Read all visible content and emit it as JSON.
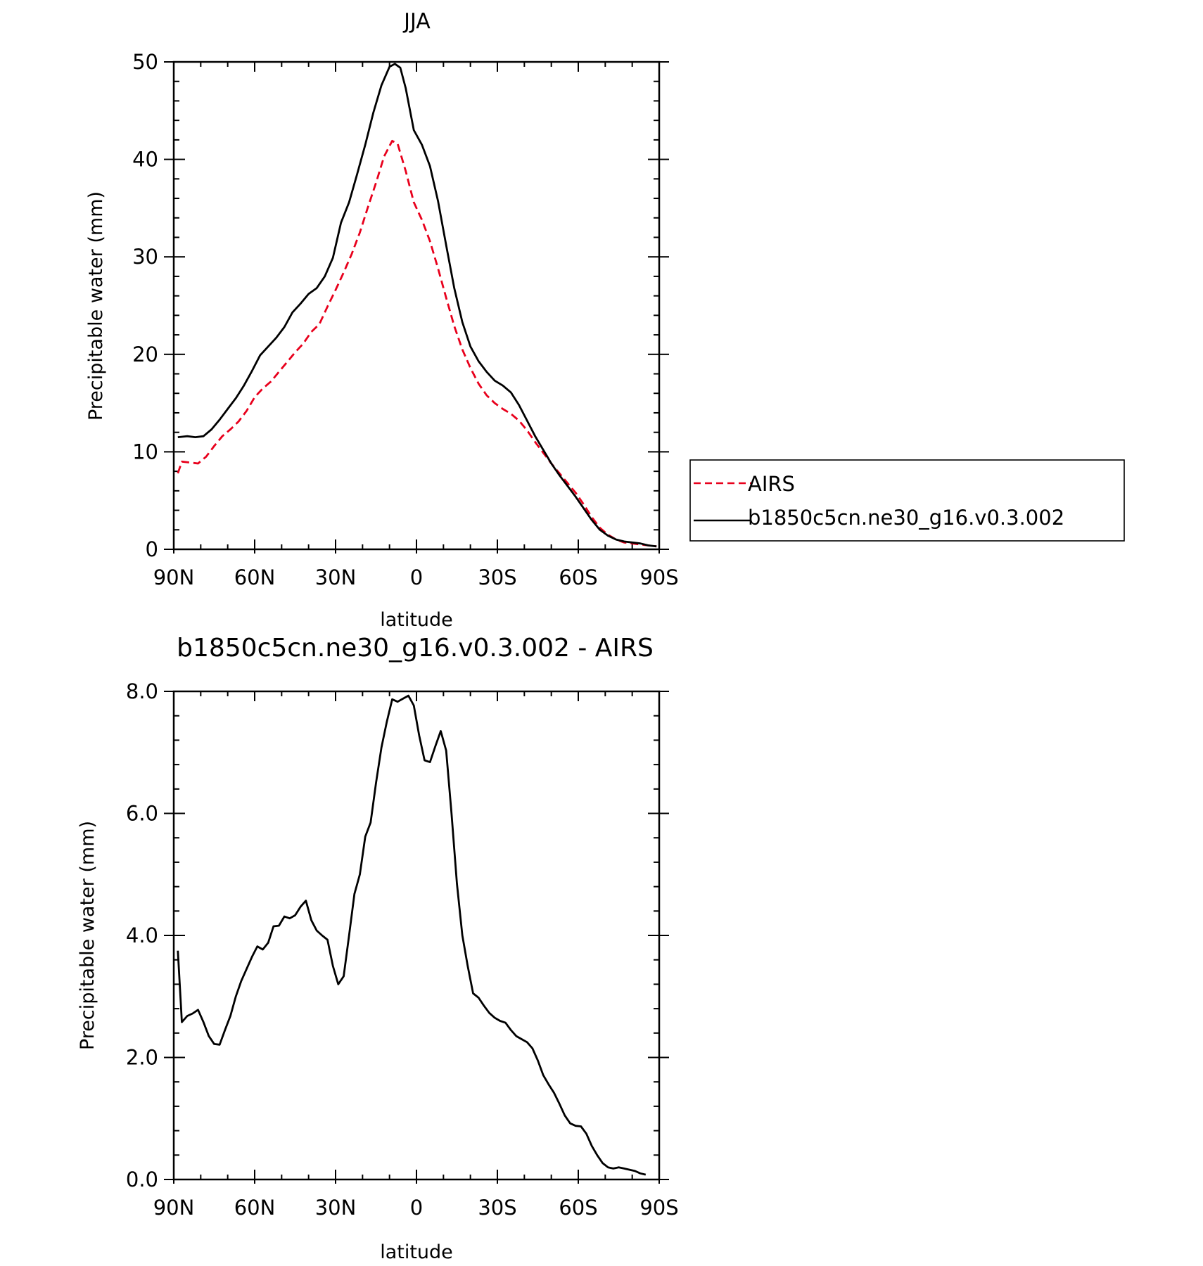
{
  "chart_data": [
    {
      "type": "line",
      "title": "JJA",
      "xlabel": "latitude",
      "ylabel": "Precipitable water (mm)",
      "xlim": [
        90,
        -90
      ],
      "ylim": [
        0,
        50
      ],
      "x_ticks": [
        90,
        60,
        30,
        0,
        -30,
        -60,
        -90
      ],
      "x_tick_labels": [
        "90N",
        "60N",
        "30N",
        "0",
        "30S",
        "60S",
        "90S"
      ],
      "y_ticks": [
        0,
        10,
        20,
        30,
        40,
        50
      ],
      "y_tick_labels": [
        "0",
        "10",
        "20",
        "30",
        "40",
        "50"
      ],
      "legend_position": "right",
      "series": [
        {
          "name": "AIRS",
          "color": "#e8001c",
          "dash": true,
          "points": [
            [
              88.5,
              7.8
            ],
            [
              87,
              9.0
            ],
            [
              84,
              8.9
            ],
            [
              81,
              8.8
            ],
            [
              78,
              9.5
            ],
            [
              75,
              10.6
            ],
            [
              72,
              11.6
            ],
            [
              69,
              12.3
            ],
            [
              66,
              13.1
            ],
            [
              63,
              14.2
            ],
            [
              60,
              15.6
            ],
            [
              57,
              16.5
            ],
            [
              54,
              17.2
            ],
            [
              51,
              18.2
            ],
            [
              48,
              19.2
            ],
            [
              45,
              20.2
            ],
            [
              42,
              21.1
            ],
            [
              39,
              22.3
            ],
            [
              36,
              23.1
            ],
            [
              33,
              24.9
            ],
            [
              30,
              26.6
            ],
            [
              27,
              28.4
            ],
            [
              24,
              30.3
            ],
            [
              21,
              32.5
            ],
            [
              18,
              35.1
            ],
            [
              15,
              37.6
            ],
            [
              12,
              40.3
            ],
            [
              9,
              41.9
            ],
            [
              7,
              41.6
            ],
            [
              4,
              38.8
            ],
            [
              1,
              35.6
            ],
            [
              -2,
              33.8
            ],
            [
              -5,
              31.6
            ],
            [
              -8,
              28.8
            ],
            [
              -11,
              25.8
            ],
            [
              -14,
              22.9
            ],
            [
              -17,
              20.5
            ],
            [
              -20,
              18.6
            ],
            [
              -23,
              17.0
            ],
            [
              -26,
              15.8
            ],
            [
              -29,
              15.0
            ],
            [
              -32,
              14.4
            ],
            [
              -35,
              13.9
            ],
            [
              -38,
              13.2
            ],
            [
              -41,
              12.2
            ],
            [
              -44,
              11.0
            ],
            [
              -47,
              9.9
            ],
            [
              -50,
              8.8
            ],
            [
              -53,
              7.8
            ],
            [
              -56,
              6.8
            ],
            [
              -59,
              5.8
            ],
            [
              -62,
              4.6
            ],
            [
              -65,
              3.3
            ],
            [
              -68,
              2.2
            ],
            [
              -71,
              1.5
            ],
            [
              -74,
              1.0
            ],
            [
              -77,
              0.7
            ],
            [
              -80,
              0.6
            ],
            [
              -83,
              0.5
            ],
            [
              -86,
              0.4
            ],
            [
              -89,
              0.3
            ]
          ]
        },
        {
          "name": "b1850c5cn.ne30_g16.v0.3.002",
          "color": "#000000",
          "dash": false,
          "points": [
            [
              88.5,
              11.5
            ],
            [
              85,
              11.6
            ],
            [
              82,
              11.5
            ],
            [
              79,
              11.6
            ],
            [
              76,
              12.3
            ],
            [
              73,
              13.3
            ],
            [
              70,
              14.4
            ],
            [
              67,
              15.5
            ],
            [
              64,
              16.8
            ],
            [
              61,
              18.3
            ],
            [
              58,
              19.9
            ],
            [
              55,
              20.8
            ],
            [
              52,
              21.7
            ],
            [
              49,
              22.8
            ],
            [
              46,
              24.3
            ],
            [
              43,
              25.2
            ],
            [
              40,
              26.2
            ],
            [
              37,
              26.8
            ],
            [
              34,
              28.0
            ],
            [
              31,
              29.9
            ],
            [
              28,
              33.5
            ],
            [
              25,
              35.6
            ],
            [
              22,
              38.5
            ],
            [
              19,
              41.5
            ],
            [
              16,
              44.8
            ],
            [
              13,
              47.6
            ],
            [
              10,
              49.5
            ],
            [
              8,
              49.8
            ],
            [
              6,
              49.4
            ],
            [
              4,
              47.3
            ],
            [
              1,
              43.0
            ],
            [
              -2,
              41.5
            ],
            [
              -5,
              39.3
            ],
            [
              -8,
              35.7
            ],
            [
              -11,
              31.2
            ],
            [
              -14,
              26.8
            ],
            [
              -17,
              23.3
            ],
            [
              -20,
              20.8
            ],
            [
              -23,
              19.3
            ],
            [
              -26,
              18.2
            ],
            [
              -29,
              17.3
            ],
            [
              -32,
              16.8
            ],
            [
              -35,
              16.1
            ],
            [
              -38,
              14.8
            ],
            [
              -41,
              13.2
            ],
            [
              -44,
              11.6
            ],
            [
              -47,
              10.2
            ],
            [
              -50,
              8.8
            ],
            [
              -53,
              7.6
            ],
            [
              -56,
              6.5
            ],
            [
              -59,
              5.4
            ],
            [
              -62,
              4.2
            ],
            [
              -65,
              3.0
            ],
            [
              -68,
              2.0
            ],
            [
              -71,
              1.4
            ],
            [
              -74,
              1.0
            ],
            [
              -77,
              0.8
            ],
            [
              -80,
              0.7
            ],
            [
              -83,
              0.6
            ],
            [
              -86,
              0.4
            ],
            [
              -89,
              0.3
            ]
          ]
        }
      ]
    },
    {
      "type": "line",
      "title": "b1850c5cn.ne30_g16.v0.3.002 - AIRS",
      "xlabel": "latitude",
      "ylabel": "Precipitable water (mm)",
      "xlim": [
        90,
        -90
      ],
      "ylim": [
        0,
        8
      ],
      "x_ticks": [
        90,
        60,
        30,
        0,
        -30,
        -60,
        -90
      ],
      "x_tick_labels": [
        "90N",
        "60N",
        "30N",
        "0",
        "30S",
        "60S",
        "90S"
      ],
      "y_ticks": [
        0,
        2,
        4,
        6,
        8
      ],
      "y_tick_labels": [
        "0.0",
        "2.0",
        "4.0",
        "6.0",
        "8.0"
      ],
      "series": [
        {
          "color": "#000000",
          "dash": false,
          "points": [
            [
              88.5,
              3.75
            ],
            [
              87,
              2.58
            ],
            [
              85,
              2.68
            ],
            [
              83,
              2.72
            ],
            [
              81,
              2.78
            ],
            [
              79,
              2.58
            ],
            [
              77,
              2.35
            ],
            [
              75,
              2.22
            ],
            [
              73,
              2.21
            ],
            [
              71,
              2.45
            ],
            [
              69,
              2.68
            ],
            [
              67,
              3.0
            ],
            [
              65,
              3.25
            ],
            [
              63,
              3.45
            ],
            [
              61,
              3.65
            ],
            [
              59,
              3.82
            ],
            [
              57,
              3.77
            ],
            [
              55,
              3.88
            ],
            [
              53,
              4.15
            ],
            [
              51,
              4.16
            ],
            [
              49,
              4.31
            ],
            [
              47,
              4.28
            ],
            [
              45,
              4.33
            ],
            [
              43,
              4.47
            ],
            [
              41,
              4.57
            ],
            [
              39,
              4.25
            ],
            [
              37,
              4.08
            ],
            [
              35,
              4.0
            ],
            [
              33,
              3.93
            ],
            [
              31,
              3.5
            ],
            [
              29,
              3.2
            ],
            [
              27,
              3.33
            ],
            [
              25,
              4.0
            ],
            [
              23,
              4.68
            ],
            [
              21,
              5.0
            ],
            [
              19,
              5.62
            ],
            [
              17,
              5.85
            ],
            [
              15,
              6.5
            ],
            [
              13,
              7.08
            ],
            [
              11,
              7.5
            ],
            [
              9,
              7.87
            ],
            [
              7,
              7.83
            ],
            [
              5,
              7.88
            ],
            [
              3,
              7.93
            ],
            [
              1,
              7.77
            ],
            [
              -1,
              7.28
            ],
            [
              -3,
              6.87
            ],
            [
              -5,
              6.84
            ],
            [
              -7,
              7.1
            ],
            [
              -9,
              7.35
            ],
            [
              -11,
              7.03
            ],
            [
              -13,
              6.0
            ],
            [
              -15,
              4.85
            ],
            [
              -17,
              4.0
            ],
            [
              -19,
              3.5
            ],
            [
              -21,
              3.05
            ],
            [
              -23,
              2.98
            ],
            [
              -25,
              2.85
            ],
            [
              -27,
              2.73
            ],
            [
              -29,
              2.65
            ],
            [
              -31,
              2.6
            ],
            [
              -33,
              2.57
            ],
            [
              -35,
              2.45
            ],
            [
              -37,
              2.35
            ],
            [
              -39,
              2.3
            ],
            [
              -41,
              2.25
            ],
            [
              -43,
              2.15
            ],
            [
              -45,
              1.95
            ],
            [
              -47,
              1.71
            ],
            [
              -49,
              1.56
            ],
            [
              -51,
              1.42
            ],
            [
              -53,
              1.24
            ],
            [
              -55,
              1.05
            ],
            [
              -57,
              0.92
            ],
            [
              -59,
              0.88
            ],
            [
              -61,
              0.87
            ],
            [
              -63,
              0.75
            ],
            [
              -65,
              0.55
            ],
            [
              -67,
              0.4
            ],
            [
              -69,
              0.27
            ],
            [
              -71,
              0.2
            ],
            [
              -73,
              0.18
            ],
            [
              -75,
              0.2
            ],
            [
              -77,
              0.18
            ],
            [
              -79,
              0.16
            ],
            [
              -81,
              0.14
            ],
            [
              -83,
              0.1
            ],
            [
              -85,
              0.08
            ]
          ]
        }
      ]
    }
  ]
}
